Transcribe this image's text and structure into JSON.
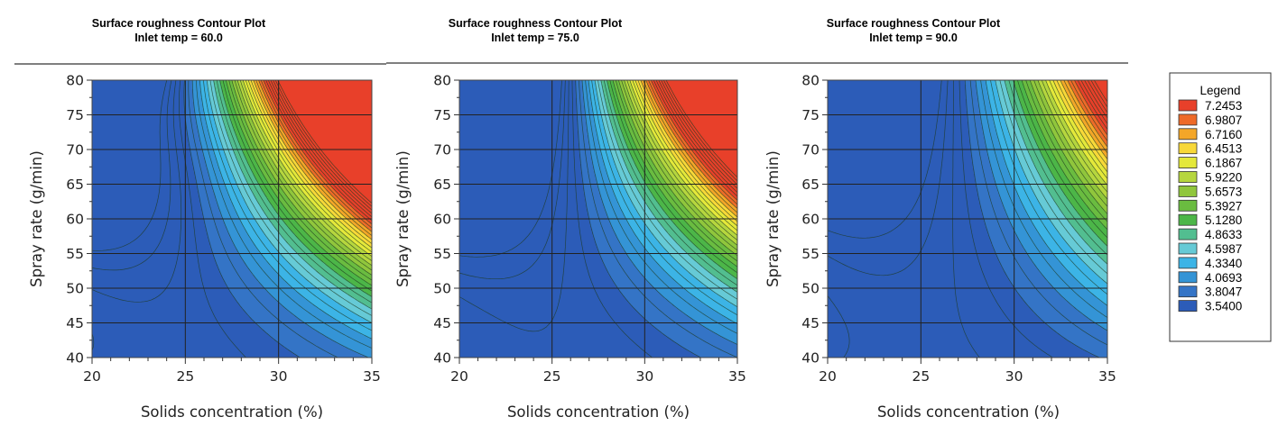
{
  "chart_data": {
    "type": "contour",
    "x_range": [
      20,
      35
    ],
    "y_range": [
      40,
      80
    ],
    "grid": true,
    "legend_position": "right",
    "plots": [
      {
        "title": "Surface roughness Contour Plot",
        "subtitle": "Inlet temp = 60.0",
        "xlabel": "Solids concentration (%)",
        "ylabel": "Spray rate (g/min)",
        "x_ticks": [
          "20",
          "25",
          "30",
          "35"
        ],
        "y_ticks": [
          "40",
          "45",
          "50",
          "55",
          "60",
          "65",
          "70",
          "75",
          "80"
        ],
        "model": {
          "xmin": 24.0,
          "ymin": 40,
          "a": 0.004,
          "b": 0.0012,
          "c": 3.6,
          "slope": 0.00045,
          "x_ref": 28,
          "bump": 1.2,
          "bump_x": 20,
          "bump_y": 80,
          "bump_sx": 5,
          "bump_sy": 12
        }
      },
      {
        "title": "Surface roughness Contour Plot",
        "subtitle": "Inlet temp = 75.0",
        "xlabel": "Solids concentration (%)",
        "ylabel": "Spray rate (g/min)",
        "x_ticks": [
          "20",
          "25",
          "30",
          "35"
        ],
        "y_ticks": [
          "40",
          "45",
          "50",
          "55",
          "60",
          "65",
          "70",
          "75",
          "80"
        ],
        "model": {
          "xmin": 24.5,
          "ymin": 40,
          "a": 0.0035,
          "b": 0.0008,
          "c": 3.55,
          "slope": 0.0004,
          "x_ref": 28,
          "bump": 0,
          "bump_x": 20,
          "bump_y": 80,
          "bump_sx": 5,
          "bump_sy": 12
        }
      },
      {
        "title": "Surface roughness Contour Plot",
        "subtitle": "Inlet temp = 90.0",
        "xlabel": "Solids concentration (%)",
        "ylabel": "Spray rate (g/min)",
        "x_ticks": [
          "20",
          "25",
          "30",
          "35"
        ],
        "y_ticks": [
          "40",
          "45",
          "50",
          "55",
          "60",
          "65",
          "70",
          "75",
          "80"
        ],
        "model": {
          "xmin": 24.5,
          "ymin": 40,
          "a": 0.003,
          "b": 0.0002,
          "c": 3.5,
          "slope": 0.0002,
          "x_ref": 28,
          "bump": 0,
          "bump_x": 20,
          "bump_y": 80,
          "bump_sx": 5,
          "bump_sy": 12
        }
      }
    ],
    "legend": {
      "title": "Legend",
      "items": [
        {
          "label": "7.2453",
          "color": "#e8402a"
        },
        {
          "label": "6.9807",
          "color": "#ee6a28"
        },
        {
          "label": "6.7160",
          "color": "#f4a628"
        },
        {
          "label": "6.4513",
          "color": "#f8d838"
        },
        {
          "label": "6.1867",
          "color": "#e4e83a"
        },
        {
          "label": "5.9220",
          "color": "#b6d63e"
        },
        {
          "label": "5.6573",
          "color": "#90c63c"
        },
        {
          "label": "5.3927",
          "color": "#6abc40"
        },
        {
          "label": "5.1280",
          "color": "#4cb648"
        },
        {
          "label": "4.8633",
          "color": "#52be90"
        },
        {
          "label": "4.5987",
          "color": "#66cad6"
        },
        {
          "label": "4.3340",
          "color": "#3cb4e6"
        },
        {
          "label": "4.0693",
          "color": "#3494d6"
        },
        {
          "label": "3.8047",
          "color": "#3474c6"
        },
        {
          "label": "3.5400",
          "color": "#2c5cb8"
        }
      ]
    }
  }
}
